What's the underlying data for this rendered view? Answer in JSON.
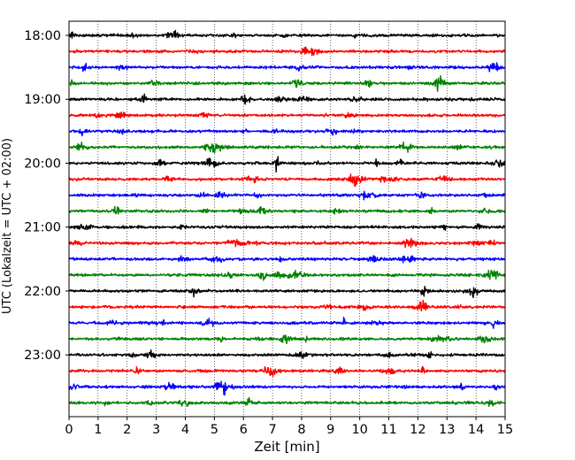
{
  "chart_data": {
    "type": "line",
    "title": "",
    "xlabel": "Zeit  [min]",
    "ylabel": "UTC (Lokalzeit = UTC + 02:00)",
    "xlim": [
      0,
      15
    ],
    "x_ticks": [
      0,
      1,
      2,
      3,
      4,
      5,
      6,
      7,
      8,
      9,
      10,
      11,
      12,
      13,
      14,
      15
    ],
    "y_tick_labels": [
      "18:00",
      "19:00",
      "20:00",
      "21:00",
      "22:00",
      "23:00"
    ],
    "grid_x": true,
    "traces_per_hour": 4,
    "trace_minutes": 15,
    "color_cycle": [
      "#000000",
      "#ff0000",
      "#0000ff",
      "#008000"
    ],
    "series": [
      {
        "start": "18:00",
        "color": "#000000"
      },
      {
        "start": "18:15",
        "color": "#ff0000"
      },
      {
        "start": "18:30",
        "color": "#0000ff"
      },
      {
        "start": "18:45",
        "color": "#008000"
      },
      {
        "start": "19:00",
        "color": "#000000"
      },
      {
        "start": "19:15",
        "color": "#ff0000"
      },
      {
        "start": "19:30",
        "color": "#0000ff"
      },
      {
        "start": "19:45",
        "color": "#008000"
      },
      {
        "start": "20:00",
        "color": "#000000"
      },
      {
        "start": "20:15",
        "color": "#ff0000"
      },
      {
        "start": "20:30",
        "color": "#0000ff"
      },
      {
        "start": "20:45",
        "color": "#008000"
      },
      {
        "start": "21:00",
        "color": "#000000"
      },
      {
        "start": "21:15",
        "color": "#ff0000"
      },
      {
        "start": "21:30",
        "color": "#0000ff"
      },
      {
        "start": "21:45",
        "color": "#008000"
      },
      {
        "start": "22:00",
        "color": "#000000"
      },
      {
        "start": "22:15",
        "color": "#ff0000"
      },
      {
        "start": "22:30",
        "color": "#0000ff"
      },
      {
        "start": "22:45",
        "color": "#008000"
      },
      {
        "start": "23:00",
        "color": "#000000"
      },
      {
        "start": "23:15",
        "color": "#ff0000"
      },
      {
        "start": "23:30",
        "color": "#0000ff"
      },
      {
        "start": "23:45",
        "color": "#008000"
      }
    ]
  }
}
